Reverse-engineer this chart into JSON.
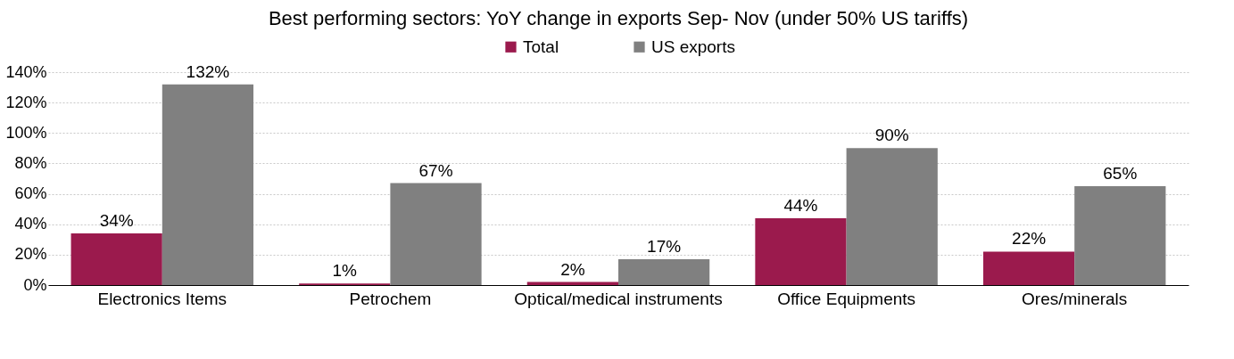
{
  "chart_data": {
    "type": "bar",
    "title": "Best performing sectors: YoY change in exports Sep- Nov (under 50% US tariffs)",
    "categories": [
      "Electronics Items",
      "Petrochem",
      "Optical/medical instruments",
      "Office Equipments",
      "Ores/minerals"
    ],
    "series": [
      {
        "name": "Total",
        "color": "#9b1a4d",
        "values": [
          34,
          1,
          2,
          44,
          22
        ],
        "value_labels": [
          "34%",
          "1%",
          "2%",
          "44%",
          "22%"
        ]
      },
      {
        "name": "US exports",
        "color": "#808080",
        "values": [
          132,
          67,
          17,
          90,
          65
        ],
        "value_labels": [
          "132%",
          "67%",
          "17%",
          "90%",
          "65%"
        ]
      }
    ],
    "ylim": [
      0,
      140
    ],
    "yticks": [
      {
        "value": 0,
        "label": "0%"
      },
      {
        "value": 20,
        "label": "20%"
      },
      {
        "value": 40,
        "label": "40%"
      },
      {
        "value": 60,
        "label": "60%"
      },
      {
        "value": 80,
        "label": "80%"
      },
      {
        "value": 100,
        "label": "100%"
      },
      {
        "value": 120,
        "label": "120%"
      },
      {
        "value": 140,
        "label": "140%"
      }
    ],
    "grid": "y",
    "legend": "top"
  }
}
